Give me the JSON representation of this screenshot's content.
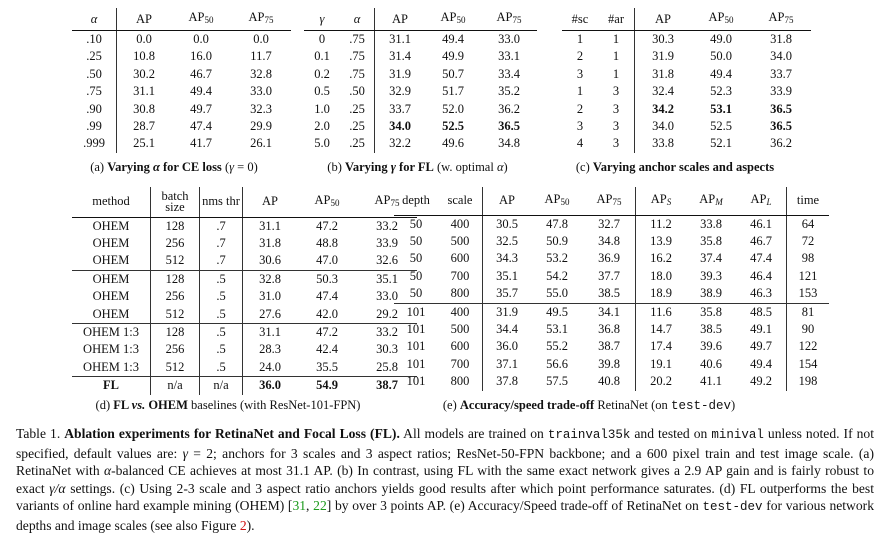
{
  "tables": [
    {
      "id": "a",
      "headers": [
        {
          "t": "α",
          "it": true
        },
        {
          "t": "AP"
        },
        {
          "t": "AP",
          "sub": "50"
        },
        {
          "t": "AP",
          "sub": "75"
        }
      ],
      "vlines": [
        1
      ],
      "rows": [
        [
          ".10",
          "0.0",
          "0.0",
          "0.0"
        ],
        [
          ".25",
          "10.8",
          "16.0",
          "11.7"
        ],
        [
          ".50",
          "30.2",
          "46.7",
          "32.8"
        ],
        [
          ".75",
          "31.1",
          "49.4",
          "33.0"
        ],
        [
          ".90",
          "30.8",
          "49.7",
          "32.3"
        ],
        [
          ".99",
          "28.7",
          "47.4",
          "29.9"
        ],
        [
          ".999",
          "25.1",
          "41.7",
          "26.1"
        ]
      ],
      "bold": [],
      "separators": [],
      "caption": [
        {
          "t": "(a) "
        },
        {
          "t": "Varying ",
          "b": true
        },
        {
          "t": "α",
          "b": true,
          "it": true
        },
        {
          "t": " for CE loss",
          "b": true
        },
        {
          "t": " ("
        },
        {
          "t": "γ",
          "it": true
        },
        {
          "t": " = 0)"
        }
      ]
    },
    {
      "id": "b",
      "headers": [
        {
          "t": "γ",
          "it": true
        },
        {
          "t": "α",
          "it": true
        },
        {
          "t": "AP"
        },
        {
          "t": "AP",
          "sub": "50"
        },
        {
          "t": "AP",
          "sub": "75"
        }
      ],
      "vlines": [
        2
      ],
      "rows": [
        [
          "0",
          ".75",
          "31.1",
          "49.4",
          "33.0"
        ],
        [
          "0.1",
          ".75",
          "31.4",
          "49.9",
          "33.1"
        ],
        [
          "0.2",
          ".75",
          "31.9",
          "50.7",
          "33.4"
        ],
        [
          "0.5",
          ".50",
          "32.9",
          "51.7",
          "35.2"
        ],
        [
          "1.0",
          ".25",
          "33.7",
          "52.0",
          "36.2"
        ],
        [
          "2.0",
          ".25",
          "34.0",
          "52.5",
          "36.5"
        ],
        [
          "5.0",
          ".25",
          "32.2",
          "49.6",
          "34.8"
        ]
      ],
      "bold": [
        [
          5,
          2
        ],
        [
          5,
          3
        ],
        [
          5,
          4
        ]
      ],
      "separators": [],
      "caption": [
        {
          "t": "(b) "
        },
        {
          "t": "Varying ",
          "b": true
        },
        {
          "t": "γ",
          "b": true,
          "it": true
        },
        {
          "t": " for FL",
          "b": true
        },
        {
          "t": " (w. optimal "
        },
        {
          "t": "α",
          "it": true
        },
        {
          "t": ")"
        }
      ]
    },
    {
      "id": "c",
      "headers": [
        {
          "t": "#sc"
        },
        {
          "t": "#ar"
        },
        {
          "t": "AP"
        },
        {
          "t": "AP",
          "sub": "50"
        },
        {
          "t": "AP",
          "sub": "75"
        }
      ],
      "vlines": [
        2
      ],
      "rows": [
        [
          "1",
          "1",
          "30.3",
          "49.0",
          "31.8"
        ],
        [
          "2",
          "1",
          "31.9",
          "50.0",
          "34.0"
        ],
        [
          "3",
          "1",
          "31.8",
          "49.4",
          "33.7"
        ],
        [
          "1",
          "3",
          "32.4",
          "52.3",
          "33.9"
        ],
        [
          "2",
          "3",
          "34.2",
          "53.1",
          "36.5"
        ],
        [
          "3",
          "3",
          "34.0",
          "52.5",
          "36.5"
        ],
        [
          "4",
          "3",
          "33.8",
          "52.1",
          "36.2"
        ]
      ],
      "bold": [
        [
          4,
          2
        ],
        [
          4,
          3
        ],
        [
          4,
          4
        ],
        [
          5,
          4
        ]
      ],
      "separators": [],
      "caption": [
        {
          "t": "(c) "
        },
        {
          "t": "Varying anchor scales and aspects",
          "b": true
        }
      ]
    },
    {
      "id": "d",
      "headers": [
        {
          "t": "method"
        },
        {
          "t": "batch size"
        },
        {
          "t": "nms thr"
        },
        {
          "t": "AP"
        },
        {
          "t": "AP",
          "sub": "50"
        },
        {
          "t": "AP",
          "sub": "75"
        }
      ],
      "vlines": [
        1,
        2,
        3
      ],
      "rows": [
        [
          "OHEM",
          "128",
          ".7",
          "31.1",
          "47.2",
          "33.2"
        ],
        [
          "OHEM",
          "256",
          ".7",
          "31.8",
          "48.8",
          "33.9"
        ],
        [
          "OHEM",
          "512",
          ".7",
          "30.6",
          "47.0",
          "32.6"
        ],
        [
          "OHEM",
          "128",
          ".5",
          "32.8",
          "50.3",
          "35.1"
        ],
        [
          "OHEM",
          "256",
          ".5",
          "31.0",
          "47.4",
          "33.0"
        ],
        [
          "OHEM",
          "512",
          ".5",
          "27.6",
          "42.0",
          "29.2"
        ],
        [
          "OHEM 1:3",
          "128",
          ".5",
          "31.1",
          "47.2",
          "33.2"
        ],
        [
          "OHEM 1:3",
          "256",
          ".5",
          "28.3",
          "42.4",
          "30.3"
        ],
        [
          "OHEM 1:3",
          "512",
          ".5",
          "24.0",
          "35.5",
          "25.8"
        ],
        [
          "FL",
          "n/a",
          "n/a",
          "36.0",
          "54.9",
          "38.7"
        ]
      ],
      "bold": [
        [
          9,
          0
        ],
        [
          9,
          3
        ],
        [
          9,
          4
        ],
        [
          9,
          5
        ]
      ],
      "separators": [
        3,
        6,
        9
      ],
      "caption": [
        {
          "t": "(d) "
        },
        {
          "t": "FL ",
          "b": true
        },
        {
          "t": "vs.",
          "b": true,
          "it": true
        },
        {
          "t": " OHEM",
          "b": true
        },
        {
          "t": " baselines (with ResNet-101-FPN)"
        }
      ]
    },
    {
      "id": "e",
      "headers": [
        {
          "t": "depth"
        },
        {
          "t": "scale"
        },
        {
          "t": "AP"
        },
        {
          "t": "AP",
          "sub": "50"
        },
        {
          "t": "AP",
          "sub": "75"
        },
        {
          "t": "AP",
          "sub": "S",
          "subit": true
        },
        {
          "t": "AP",
          "sub": "M",
          "subit": true
        },
        {
          "t": "AP",
          "sub": "L",
          "subit": true
        },
        {
          "t": "time"
        }
      ],
      "vlines": [
        2,
        5,
        8
      ],
      "rows": [
        [
          "50",
          "400",
          "30.5",
          "47.8",
          "32.7",
          "11.2",
          "33.8",
          "46.1",
          "64"
        ],
        [
          "50",
          "500",
          "32.5",
          "50.9",
          "34.8",
          "13.9",
          "35.8",
          "46.7",
          "72"
        ],
        [
          "50",
          "600",
          "34.3",
          "53.2",
          "36.9",
          "16.2",
          "37.4",
          "47.4",
          "98"
        ],
        [
          "50",
          "700",
          "35.1",
          "54.2",
          "37.7",
          "18.0",
          "39.3",
          "46.4",
          "121"
        ],
        [
          "50",
          "800",
          "35.7",
          "55.0",
          "38.5",
          "18.9",
          "38.9",
          "46.3",
          "153"
        ],
        [
          "101",
          "400",
          "31.9",
          "49.5",
          "34.1",
          "11.6",
          "35.8",
          "48.5",
          "81"
        ],
        [
          "101",
          "500",
          "34.4",
          "53.1",
          "36.8",
          "14.7",
          "38.5",
          "49.1",
          "90"
        ],
        [
          "101",
          "600",
          "36.0",
          "55.2",
          "38.7",
          "17.4",
          "39.6",
          "49.7",
          "122"
        ],
        [
          "101",
          "700",
          "37.1",
          "56.6",
          "39.8",
          "19.1",
          "40.6",
          "49.4",
          "154"
        ],
        [
          "101",
          "800",
          "37.8",
          "57.5",
          "40.8",
          "20.2",
          "41.1",
          "49.2",
          "198"
        ]
      ],
      "bold": [],
      "separators": [
        5
      ],
      "caption": [
        {
          "t": "(e) "
        },
        {
          "t": "Accuracy/speed trade-off",
          "b": true
        },
        {
          "t": " RetinaNet (on "
        },
        {
          "t": "test-dev",
          "mono": true
        },
        {
          "t": ")"
        }
      ]
    }
  ],
  "caption": [
    {
      "t": "Table 1. "
    },
    {
      "t": "Ablation experiments for RetinaNet and Focal Loss (FL).",
      "b": true
    },
    {
      "t": " All models are trained on "
    },
    {
      "t": "trainval35k",
      "mono": true
    },
    {
      "t": " and tested on "
    },
    {
      "t": "minival",
      "mono": true
    },
    {
      "t": " unless noted. If not specified, default values are: "
    },
    {
      "t": "γ",
      "it": true
    },
    {
      "t": " = 2; anchors for 3 scales and 3 aspect ratios; ResNet-50-FPN backbone; and a 600 pixel train and test image scale. (a) RetinaNet with "
    },
    {
      "t": "α",
      "it": true
    },
    {
      "t": "-balanced CE achieves at most 31.1 AP. (b) In contrast, using FL with the same exact network gives a 2.9 AP gain and is fairly robust to exact "
    },
    {
      "t": "γ/α",
      "it": true
    },
    {
      "t": " settings. (c) Using 2-3 scale and 3 aspect ratio anchors yields good results after which point performance saturates. (d) FL outperforms the best variants of online hard example mining (OHEM) ["
    },
    {
      "t": "31",
      "cls": "grn"
    },
    {
      "t": ", "
    },
    {
      "t": "22",
      "cls": "grn"
    },
    {
      "t": "] by over 3 points AP. (e) Accuracy/Speed trade-off of RetinaNet on "
    },
    {
      "t": "test-dev",
      "mono": true
    },
    {
      "t": " for various network depths and image scales (see also Figure "
    },
    {
      "t": "2",
      "cls": "red"
    },
    {
      "t": ")."
    }
  ],
  "colors": {
    "citation": "#1a9a1a",
    "figure_ref": "#d01010"
  }
}
